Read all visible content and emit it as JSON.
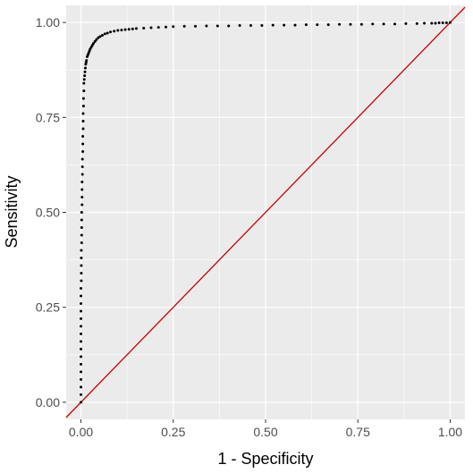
{
  "chart_data": {
    "type": "scatter",
    "title": "",
    "xlabel": "1 - Specificity",
    "ylabel": "Sensitivity",
    "xlim": [
      -0.04,
      1.04
    ],
    "ylim": [
      -0.045,
      1.045
    ],
    "x_ticks": [
      0,
      0.25,
      0.5,
      0.75,
      1
    ],
    "x_tick_labels": [
      "0.00",
      "0.25",
      "0.50",
      "0.75",
      "1.00"
    ],
    "y_ticks": [
      0,
      0.25,
      0.5,
      0.75,
      1
    ],
    "y_tick_labels": [
      "0.00",
      "0.25",
      "0.50",
      "0.75",
      "1.00"
    ],
    "grid": true,
    "panel_background": "#ebebeb",
    "grid_color": "#ffffff",
    "series": [
      {
        "kind": "points",
        "color": "#000000",
        "x": [
          0,
          0,
          0,
          0,
          0,
          0,
          0,
          0,
          0,
          0,
          0,
          0,
          0,
          0,
          0,
          0,
          0.001,
          0.001,
          0.001,
          0.001,
          0.001,
          0.002,
          0.002,
          0.002,
          0.002,
          0.002,
          0.003,
          0.003,
          0.003,
          0.003,
          0.004,
          0.004,
          0.004,
          0.005,
          0.005,
          0.005,
          0.006,
          0.006,
          0.006,
          0.007,
          0.007,
          0.008,
          0.008,
          0.009,
          0.01,
          0.011,
          0.012,
          0.013,
          0.014,
          0.015,
          0.017,
          0.019,
          0.021,
          0.023,
          0.025,
          0.028,
          0.031,
          0.034,
          0.038,
          0.042,
          0.047,
          0.052,
          0.058,
          0.065,
          0.072,
          0.08,
          0.09,
          0.1,
          0.11,
          0.12,
          0.13,
          0.14,
          0.15,
          0.17,
          0.19,
          0.21,
          0.23,
          0.25,
          0.28,
          0.31,
          0.34,
          0.37,
          0.4,
          0.43,
          0.46,
          0.49,
          0.52,
          0.55,
          0.58,
          0.61,
          0.64,
          0.67,
          0.7,
          0.73,
          0.76,
          0.79,
          0.82,
          0.85,
          0.88,
          0.91,
          0.93,
          0.95,
          0.96,
          0.97,
          0.98,
          0.99,
          1.0
        ],
        "y": [
          0,
          0.02,
          0.04,
          0.06,
          0.08,
          0.1,
          0.12,
          0.14,
          0.16,
          0.18,
          0.2,
          0.22,
          0.24,
          0.26,
          0.28,
          0.3,
          0.32,
          0.34,
          0.36,
          0.38,
          0.4,
          0.42,
          0.44,
          0.46,
          0.48,
          0.5,
          0.52,
          0.54,
          0.56,
          0.58,
          0.6,
          0.62,
          0.64,
          0.66,
          0.68,
          0.7,
          0.72,
          0.74,
          0.76,
          0.78,
          0.8,
          0.82,
          0.84,
          0.85,
          0.86,
          0.87,
          0.88,
          0.89,
          0.895,
          0.9,
          0.91,
          0.915,
          0.92,
          0.925,
          0.93,
          0.935,
          0.94,
          0.945,
          0.95,
          0.955,
          0.96,
          0.963,
          0.966,
          0.97,
          0.972,
          0.975,
          0.977,
          0.979,
          0.98,
          0.981,
          0.982,
          0.983,
          0.984,
          0.985,
          0.986,
          0.987,
          0.988,
          0.989,
          0.99,
          0.99,
          0.991,
          0.991,
          0.991,
          0.992,
          0.992,
          0.992,
          0.993,
          0.993,
          0.993,
          0.994,
          0.994,
          0.994,
          0.995,
          0.995,
          0.995,
          0.996,
          0.996,
          0.996,
          0.997,
          0.997,
          0.998,
          0.998,
          0.998,
          0.999,
          0.999,
          0.999,
          1.0
        ]
      },
      {
        "kind": "reference_line",
        "color": "#cc0000",
        "x": [
          -0.04,
          1.04
        ],
        "y": [
          -0.04,
          1.04
        ]
      }
    ]
  }
}
